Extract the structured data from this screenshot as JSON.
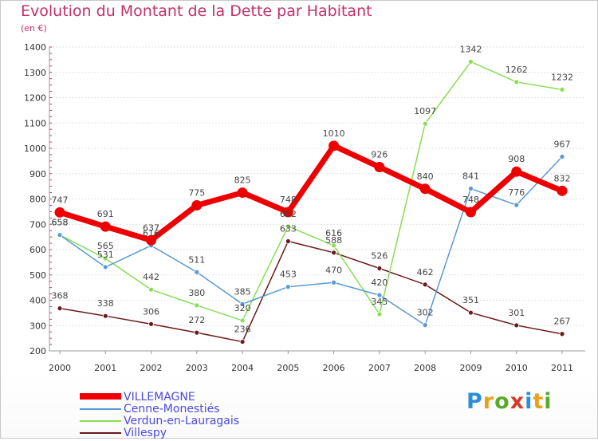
{
  "header": {
    "title": "Evolution du Montant de la Dette par Habitant",
    "unit": "(en €)"
  },
  "brand": {
    "letters": [
      "P",
      "r",
      "o",
      "x",
      "i",
      "t",
      "i"
    ],
    "colors": [
      "#2a8fd6",
      "#e8a21a",
      "#5aaa2a",
      "#d63a2a",
      "#2a8fd6",
      "#e8a21a",
      "#5aaa2a"
    ]
  },
  "chart_data": {
    "type": "line",
    "x": [
      "2000",
      "2001",
      "2002",
      "2003",
      "2004",
      "2005",
      "2006",
      "2007",
      "2008",
      "2009",
      "2010",
      "2011"
    ],
    "ylim": [
      200,
      1400
    ],
    "yticks": [
      "200",
      "300",
      "400",
      "500",
      "600",
      "700",
      "800",
      "900",
      "1000",
      "1100",
      "1200",
      "1300",
      "1400"
    ],
    "grid": "horizontal",
    "legend_position": "bottom-left",
    "series": [
      {
        "name": "VILLEMAGNE",
        "color": "#ee0000",
        "values": [
          747,
          691,
          637,
          775,
          825,
          748,
          1010,
          926,
          840,
          748,
          908,
          832
        ]
      },
      {
        "name": "Cenne-Monestiés",
        "color": "#5a9ad2",
        "values": [
          658,
          531,
          616,
          511,
          385,
          453,
          470,
          420,
          302,
          841,
          776,
          967
        ]
      },
      {
        "name": "Verdun-en-Lauragais",
        "color": "#88dd55",
        "values": [
          658,
          565,
          442,
          380,
          320,
          692,
          616,
          345,
          1097,
          1342,
          1262,
          1232
        ]
      },
      {
        "name": "Villespy",
        "color": "#6b1a1a",
        "values": [
          368,
          338,
          306,
          272,
          236,
          633,
          588,
          526,
          462,
          351,
          301,
          267
        ]
      }
    ]
  }
}
